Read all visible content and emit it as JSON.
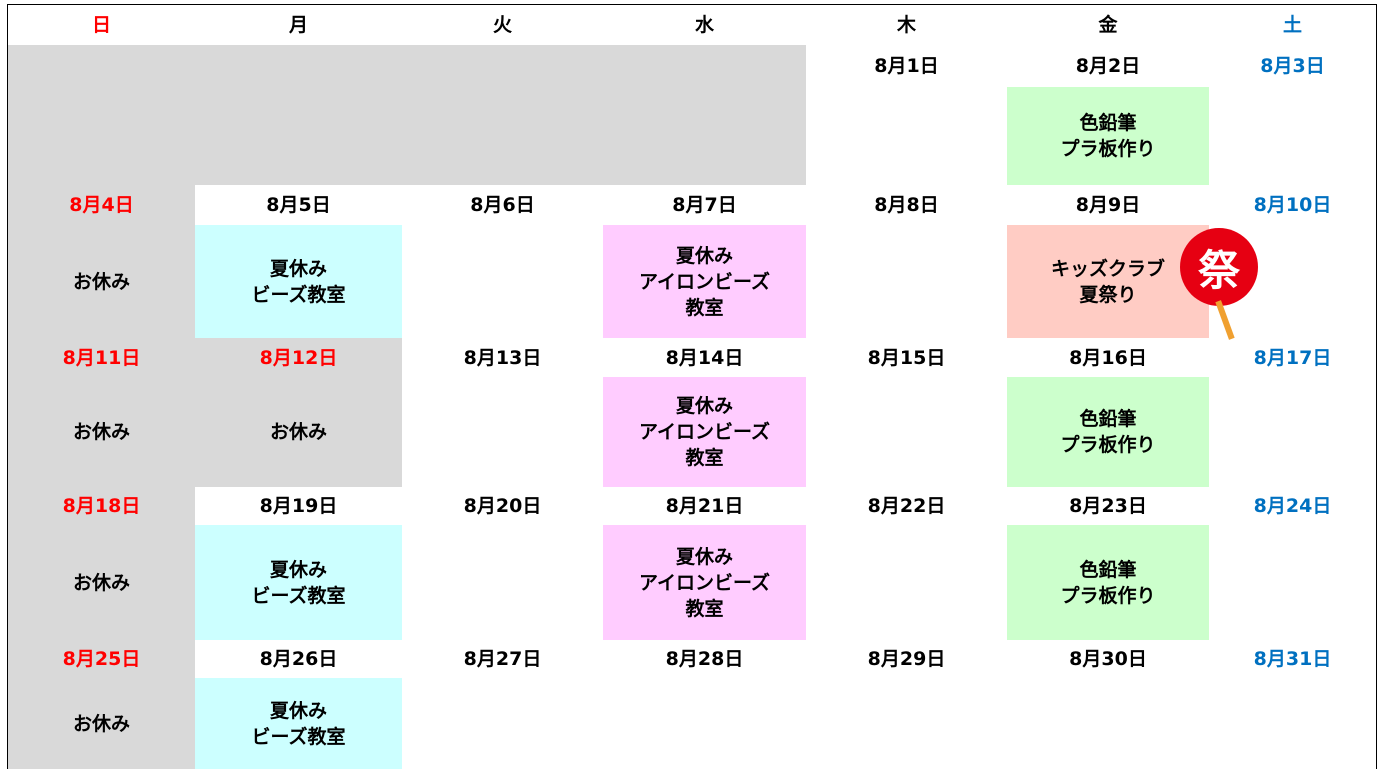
{
  "header": {
    "days": [
      {
        "text": "日",
        "color": "#ff0000"
      },
      {
        "text": "月",
        "color": "#000000"
      },
      {
        "text": "火",
        "color": "#000000"
      },
      {
        "text": "水",
        "color": "#000000"
      },
      {
        "text": "木",
        "color": "#000000"
      },
      {
        "text": "金",
        "color": "#000000"
      },
      {
        "text": "土",
        "color": "#0070c0"
      }
    ]
  },
  "weeks": [
    {
      "cells": [
        {
          "date": "8月1日"
        },
        {
          "date": "8月2日",
          "event": {
            "lines": [
              "色鉛筆",
              "プラ板作り"
            ],
            "color": "#ccffcc"
          }
        },
        {
          "date": "8月3日"
        }
      ]
    },
    {
      "cells": [
        {
          "date": "8月4日",
          "event": {
            "lines": [
              "お休み"
            ],
            "color": "#d9d9d9"
          }
        },
        {
          "date": "8月5日",
          "event": {
            "lines": [
              "夏休み",
              "ビーズ教室"
            ],
            "color": "#ccffff"
          }
        },
        {
          "date": "8月6日"
        },
        {
          "date": "8月7日",
          "event": {
            "lines": [
              "夏休み",
              "アイロンビーズ",
              "教室"
            ],
            "color": "#ffccff"
          }
        },
        {
          "date": "8月8日"
        },
        {
          "date": "8月9日",
          "event": {
            "lines": [
              "キッズクラブ",
              "夏祭り"
            ],
            "color": "#ffccc4"
          }
        },
        {
          "date": "8月10日"
        }
      ]
    },
    {
      "cells": [
        {
          "date": "8月11日",
          "event": {
            "lines": [
              "お休み"
            ],
            "color": "#d9d9d9"
          }
        },
        {
          "date": "8月12日",
          "date_color": "#ff0000",
          "event": {
            "lines": [
              "お休み"
            ],
            "color": "#d9d9d9"
          }
        },
        {
          "date": "8月13日"
        },
        {
          "date": "8月14日",
          "event": {
            "lines": [
              "夏休み",
              "アイロンビーズ",
              "教室"
            ],
            "color": "#ffccff"
          }
        },
        {
          "date": "8月15日"
        },
        {
          "date": "8月16日",
          "event": {
            "lines": [
              "色鉛筆",
              "プラ板作り"
            ],
            "color": "#ccffcc"
          }
        },
        {
          "date": "8月17日"
        }
      ]
    },
    {
      "cells": [
        {
          "date": "8月18日",
          "event": {
            "lines": [
              "お休み"
            ],
            "color": "#d9d9d9"
          }
        },
        {
          "date": "8月19日",
          "event": {
            "lines": [
              "夏休み",
              "ビーズ教室"
            ],
            "color": "#ccffff"
          }
        },
        {
          "date": "8月20日"
        },
        {
          "date": "8月21日",
          "event": {
            "lines": [
              "夏休み",
              "アイロンビーズ",
              "教室"
            ],
            "color": "#ffccff"
          }
        },
        {
          "date": "8月22日"
        },
        {
          "date": "8月23日",
          "event": {
            "lines": [
              "色鉛筆",
              "プラ板作り"
            ],
            "color": "#ccffcc"
          }
        },
        {
          "date": "8月24日"
        }
      ]
    },
    {
      "cells": [
        {
          "date": "8月25日",
          "event": {
            "lines": [
              "お休み"
            ],
            "color": "#d9d9d9"
          }
        },
        {
          "date": "8月26日",
          "event": {
            "lines": [
              "夏休み",
              "ビーズ教室"
            ],
            "color": "#ccffff"
          }
        },
        {
          "date": "8月27日"
        },
        {
          "date": "8月28日"
        },
        {
          "date": "8月29日"
        },
        {
          "date": "8月30日"
        },
        {
          "date": "8月31日"
        }
      ]
    }
  ],
  "decorations": {
    "fan": "祭"
  }
}
